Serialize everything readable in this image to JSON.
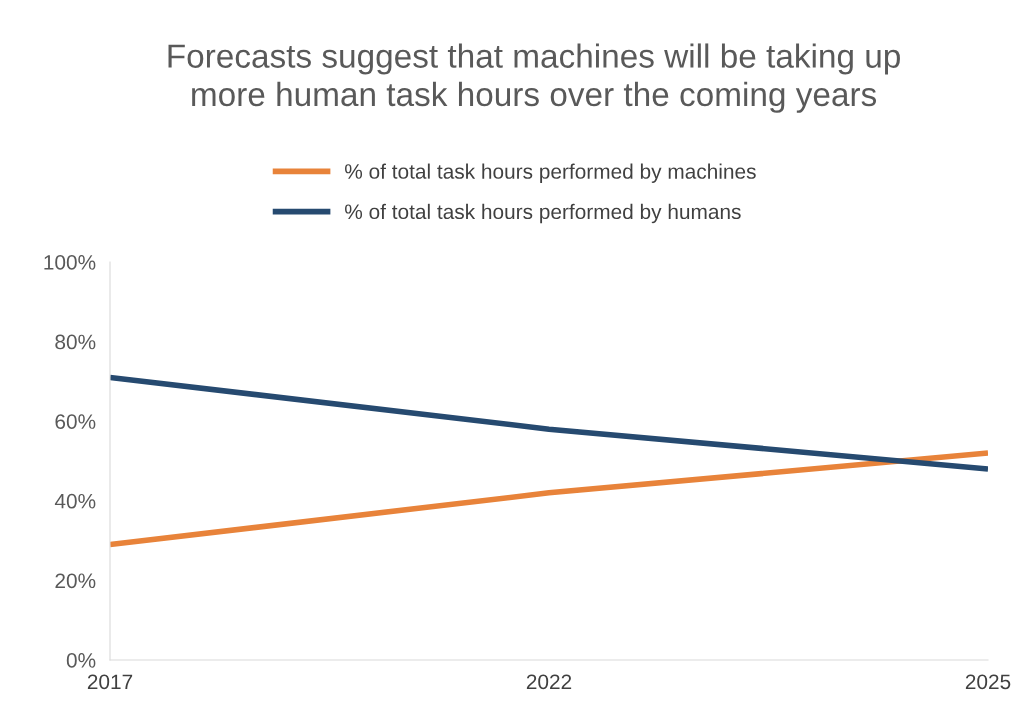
{
  "chart_data": {
    "type": "line",
    "title": "Forecasts suggest that machines will be taking up\nmore human task hours over the coming years",
    "categories": [
      "2017",
      "2022",
      "2025"
    ],
    "series": [
      {
        "name": "% of total task hours performed by machines",
        "color": "#e8833a",
        "values": [
          29,
          42,
          52
        ]
      },
      {
        "name": "% of total task hours performed by humans",
        "color": "#264a70",
        "values": [
          71,
          58,
          48
        ]
      }
    ],
    "ylim": [
      0,
      100
    ],
    "yticks": [
      {
        "value": 0,
        "label": "0%"
      },
      {
        "value": 20,
        "label": "20%"
      },
      {
        "value": 40,
        "label": "40%"
      },
      {
        "value": 60,
        "label": "60%"
      },
      {
        "value": 80,
        "label": "80%"
      },
      {
        "value": 100,
        "label": "100%"
      }
    ],
    "grid": false,
    "legend": "top",
    "marker": "none",
    "line_style": "solid"
  }
}
